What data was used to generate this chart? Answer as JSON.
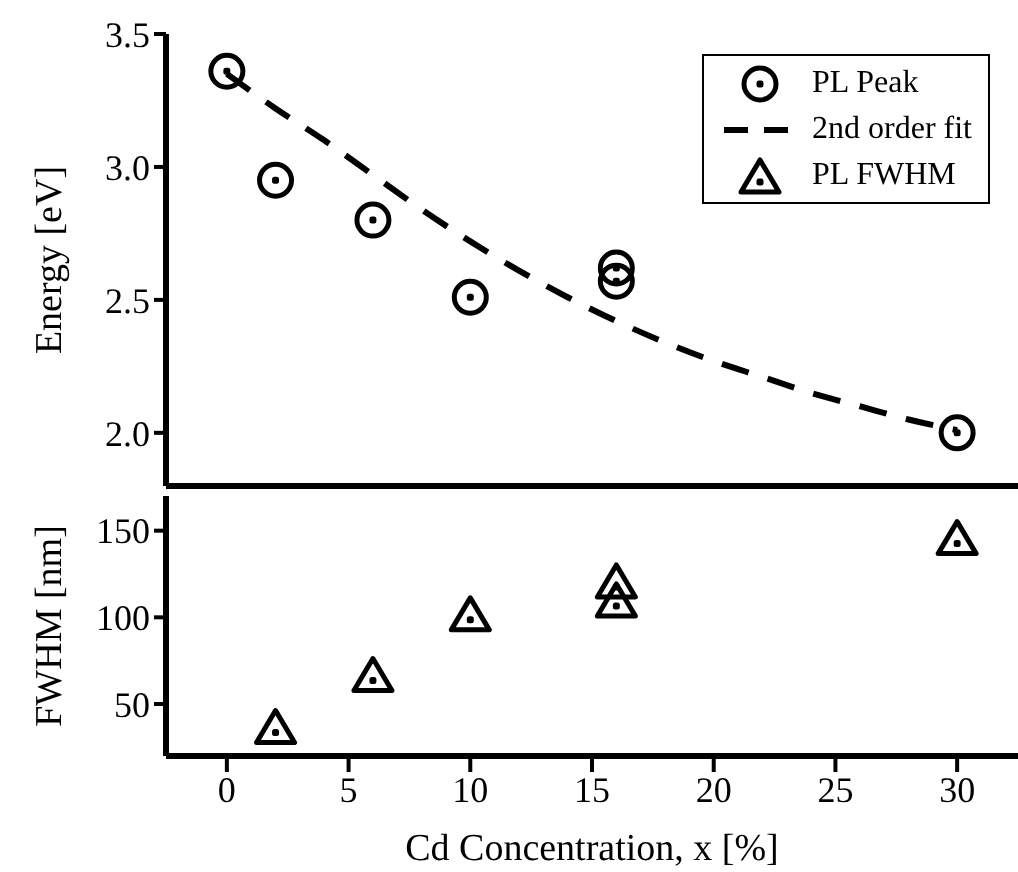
{
  "chart_data": [
    {
      "type": "scatter",
      "ylabel": "Energy [eV]",
      "xlim": [
        -2.5,
        32.5
      ],
      "xticks": [
        0,
        5,
        10,
        15,
        20,
        25,
        30
      ],
      "ylim": [
        1.8,
        3.5
      ],
      "yticks": [
        {
          "value": 2,
          "label": "2.0"
        },
        2.5,
        {
          "value": 3,
          "label": "3.0"
        },
        3.5
      ],
      "tick_labels": "y",
      "legend": "top right",
      "grid": false,
      "series": [
        {
          "name": "PL Peak",
          "color": "#000000",
          "marker": "circle",
          "x": [
            0,
            2,
            6,
            10,
            16,
            16,
            30
          ],
          "values": [
            3.36,
            2.95,
            2.8,
            2.51,
            2.62,
            2.57,
            2.0
          ]
        },
        {
          "name": "2nd order fit",
          "type": "line",
          "color": "#000000",
          "marker": "none",
          "line_style": "dashed",
          "x": [
            0,
            2,
            4,
            6,
            8,
            10,
            12,
            14,
            16,
            18,
            20,
            22,
            24,
            26,
            28,
            30
          ],
          "values": [
            3.35,
            3.22,
            3.1,
            2.97,
            2.84,
            2.72,
            2.61,
            2.51,
            2.42,
            2.34,
            2.27,
            2.21,
            2.15,
            2.1,
            2.05,
            2.01
          ]
        }
      ]
    },
    {
      "type": "scatter",
      "ylabel": "FWHM [nm]",
      "xlabel": "Cd Concentration, x [%]",
      "xlim": [
        -2.5,
        32.5
      ],
      "xticks": [
        0,
        5,
        10,
        15,
        20,
        25,
        30
      ],
      "ylim": [
        20,
        170
      ],
      "yticks": [
        50,
        100,
        150
      ],
      "grid": false,
      "series": [
        {
          "name": "PL FWHM",
          "color": "#000000",
          "marker": "triangle",
          "x": [
            2,
            6,
            10,
            16,
            16,
            30
          ],
          "values": [
            37,
            67,
            102,
            121,
            110,
            146
          ]
        }
      ]
    }
  ]
}
